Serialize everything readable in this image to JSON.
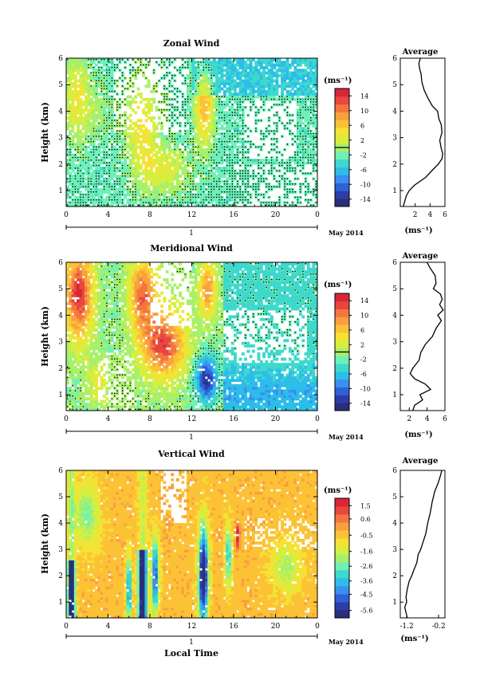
{
  "chart_data": [
    {
      "type": "heatmap",
      "title": "Zonal Wind",
      "ylabel": "Height (km)",
      "xticks": [
        "0",
        "4",
        "8",
        "12",
        "16",
        "20",
        "0"
      ],
      "yticks": [
        "1",
        "2",
        "3",
        "4",
        "5",
        "6"
      ],
      "ylim": [
        0.4,
        6
      ],
      "xlim": [
        0,
        24
      ],
      "day_label": "1",
      "month_label": "May 2014",
      "colorbar": {
        "unit": "(ms⁻¹)",
        "ticks": [
          "14",
          "10",
          "6",
          "2",
          "-2",
          "-6",
          "-10",
          "-14"
        ],
        "range": [
          -16,
          16
        ]
      },
      "profile": {
        "title": "Average",
        "xlabel": "(ms⁻¹)",
        "xticks": [
          "2",
          "4",
          "6"
        ],
        "xlim": [
          0,
          6
        ],
        "yticks": [
          "1",
          "2",
          "3",
          "4",
          "5",
          "6"
        ],
        "heights": [
          0.4,
          0.6,
          0.8,
          1.0,
          1.2,
          1.5,
          1.8,
          2.0,
          2.2,
          2.4,
          2.6,
          2.9,
          3.2,
          3.5,
          3.7,
          4.0,
          4.2,
          4.5,
          4.8,
          5.1,
          5.4,
          5.6,
          5.8,
          6.0
        ],
        "values": [
          0.4,
          0.6,
          0.8,
          1.2,
          1.9,
          3.4,
          4.4,
          5.1,
          5.6,
          5.7,
          5.5,
          5.3,
          5.6,
          5.5,
          5.2,
          5.0,
          4.3,
          3.7,
          3.2,
          2.9,
          2.8,
          2.6,
          2.5,
          2.7
        ]
      }
    },
    {
      "type": "heatmap",
      "title": "Meridional Wind",
      "ylabel": "Height (km)",
      "xticks": [
        "0",
        "4",
        "8",
        "12",
        "16",
        "20",
        "0"
      ],
      "yticks": [
        "1",
        "2",
        "3",
        "4",
        "5",
        "6"
      ],
      "ylim": [
        0.4,
        6
      ],
      "xlim": [
        0,
        24
      ],
      "day_label": "1",
      "month_label": "May 2014",
      "colorbar": {
        "unit": "(ms⁻¹)",
        "ticks": [
          "14",
          "10",
          "6",
          "2",
          "-2",
          "-6",
          "-10",
          "-14"
        ],
        "range": [
          -16,
          16
        ]
      },
      "profile": {
        "title": "Average",
        "xlabel": "(ms⁻¹)",
        "xticks": [
          "2",
          "4",
          "6"
        ],
        "xlim": [
          1,
          6
        ],
        "yticks": [
          "1",
          "2",
          "3",
          "4",
          "5",
          "6"
        ],
        "heights": [
          0.4,
          0.6,
          0.8,
          1.0,
          1.2,
          1.4,
          1.6,
          1.8,
          2.0,
          2.3,
          2.6,
          2.9,
          3.2,
          3.5,
          3.8,
          4.0,
          4.2,
          4.4,
          4.6,
          4.8,
          5.0,
          5.2,
          5.5,
          5.8,
          6.0
        ],
        "values": [
          2.4,
          2.6,
          3.5,
          3.2,
          4.4,
          3.8,
          2.6,
          2.1,
          2.4,
          3.1,
          3.3,
          3.8,
          4.6,
          5.0,
          5.6,
          5.2,
          5.8,
          5.4,
          5.7,
          5.5,
          4.7,
          5.0,
          4.9,
          4.3,
          4.0
        ]
      }
    },
    {
      "type": "heatmap",
      "title": "Vertical Wind",
      "ylabel": "Height (km)",
      "xlabel": "Local Time",
      "xticks": [
        "0",
        "4",
        "8",
        "12",
        "16",
        "20",
        "0"
      ],
      "yticks": [
        "1",
        "2",
        "3",
        "4",
        "5",
        "6"
      ],
      "ylim": [
        0.4,
        6
      ],
      "xlim": [
        0,
        24
      ],
      "day_label": "1",
      "month_label": "May 2014",
      "colorbar": {
        "unit": "(ms⁻¹)",
        "ticks": [
          "1.5",
          "0.6",
          "-0.5",
          "-1.6",
          "-2.6",
          "-3.6",
          "-4.5",
          "-5.6"
        ],
        "range": [
          -6.1,
          2.0
        ]
      },
      "profile": {
        "title": "Average",
        "xlabel": "(ms⁻¹)",
        "xticks": [
          "-1.2",
          "-0.2"
        ],
        "xlim": [
          -1.4,
          0
        ],
        "yticks": [
          "1",
          "2",
          "3",
          "4",
          "5",
          "6"
        ],
        "heights": [
          0.4,
          0.6,
          0.8,
          1.0,
          1.2,
          1.5,
          1.8,
          2.0,
          2.2,
          2.5,
          2.8,
          3.0,
          3.3,
          3.6,
          4.0,
          4.4,
          4.8,
          5.2,
          5.5,
          5.8,
          6.0
        ],
        "values": [
          -1.18,
          -1.22,
          -1.26,
          -1.2,
          -1.22,
          -1.18,
          -1.12,
          -1.04,
          -0.98,
          -0.88,
          -0.84,
          -0.76,
          -0.68,
          -0.6,
          -0.54,
          -0.46,
          -0.4,
          -0.32,
          -0.22,
          -0.14,
          -0.1
        ]
      }
    }
  ]
}
